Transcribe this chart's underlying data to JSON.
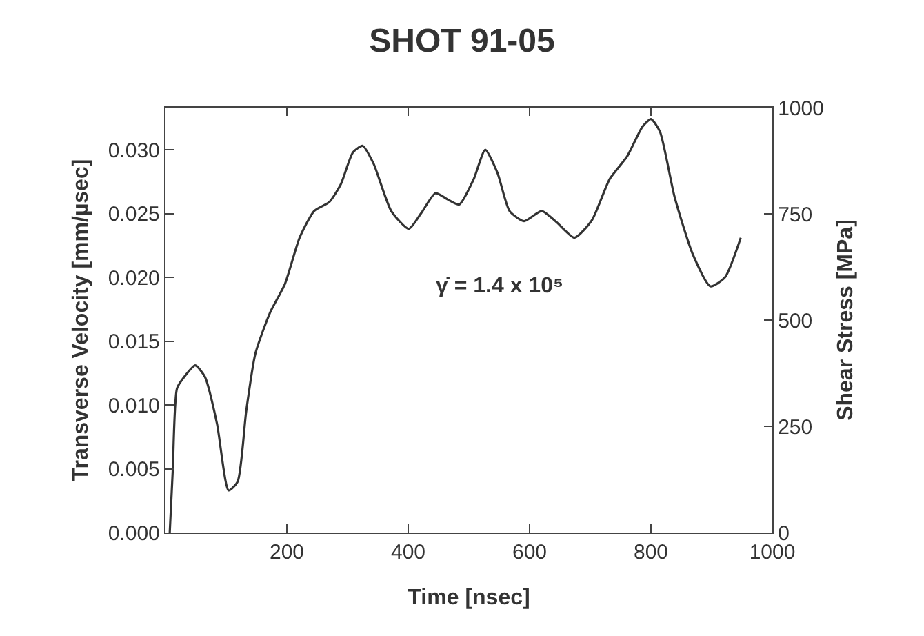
{
  "chart_data": {
    "type": "line",
    "title": "SHOT 91-05",
    "xlabel": "Time [nsec]",
    "ylabel": "Transverse Velocity [mm/µsec]",
    "y2label": "Shear Stress [MPa]",
    "annotations": [
      "γ̇ = 1.4 x 10⁵"
    ],
    "x": [
      7,
      12,
      19,
      31,
      49,
      65,
      85,
      104,
      119,
      133,
      148,
      172,
      197,
      221,
      245,
      270,
      289,
      309,
      325,
      343,
      372,
      401,
      421,
      445,
      465,
      484,
      508,
      527,
      547,
      567,
      591,
      620,
      645,
      674,
      703,
      732,
      761,
      786,
      800,
      815,
      839,
      869,
      898,
      922,
      948
    ],
    "series": [
      {
        "color": "#333333",
        "values": [
          0.0,
          0.0049,
          0.0113,
          0.0122,
          0.0131,
          0.0122,
          0.0085,
          0.0033,
          0.004,
          0.0095,
          0.014,
          0.0172,
          0.0195,
          0.0231,
          0.0252,
          0.0259,
          0.0273,
          0.0298,
          0.0303,
          0.0289,
          0.0252,
          0.0238,
          0.025,
          0.0266,
          0.0261,
          0.0257,
          0.0277,
          0.03,
          0.0282,
          0.0252,
          0.0244,
          0.0252,
          0.0243,
          0.0231,
          0.0245,
          0.0277,
          0.0295,
          0.0318,
          0.0324,
          0.0314,
          0.0263,
          0.0218,
          0.0193,
          0.02,
          0.0231
        ]
      }
    ],
    "xlim": [
      0,
      1000
    ],
    "xticks": [
      200,
      400,
      600,
      800,
      1000
    ],
    "ylim": [
      0,
      0.0333
    ],
    "yticks": [
      {
        "value": 0,
        "label": "0.000"
      },
      {
        "value": 0.005,
        "label": "0.005"
      },
      {
        "value": 0.01,
        "label": "0.010"
      },
      {
        "value": 0.015,
        "label": "0.015"
      },
      {
        "value": 0.02,
        "label": "0.020"
      },
      {
        "value": 0.025,
        "label": "0.025"
      },
      {
        "value": 0.03,
        "label": "0.030"
      }
    ],
    "y2lim": [
      0,
      1000
    ],
    "y2ticks": [
      0,
      250,
      500,
      750,
      1000
    ],
    "grid": false,
    "marker": "none",
    "line_style": "solid"
  }
}
